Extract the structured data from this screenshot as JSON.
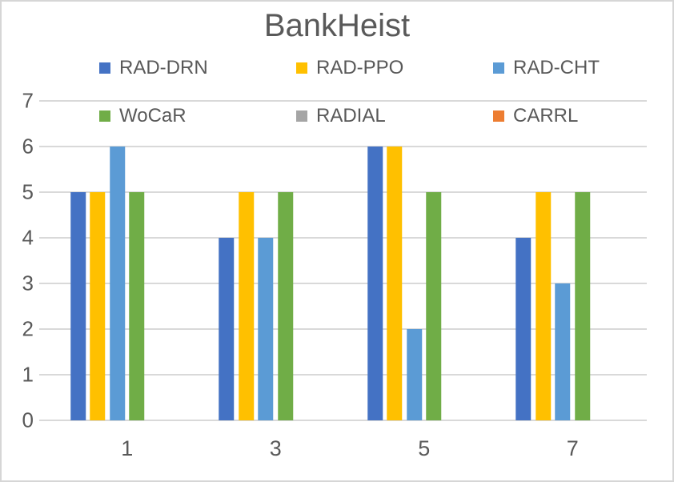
{
  "chart_data": {
    "type": "bar",
    "title": "BankHeist",
    "categories": [
      "1",
      "3",
      "5",
      "7"
    ],
    "series": [
      {
        "name": "RAD-DRN",
        "color": "#4472C4",
        "values": [
          5,
          4,
          6,
          4
        ]
      },
      {
        "name": "RAD-PPO",
        "color": "#FFC000",
        "values": [
          5,
          5,
          6,
          5
        ]
      },
      {
        "name": "RAD-CHT",
        "color": "#5B9BD5",
        "values": [
          6,
          4,
          2,
          3
        ]
      },
      {
        "name": "WoCaR",
        "color": "#70AD47",
        "values": [
          5,
          5,
          5,
          5
        ]
      },
      {
        "name": "RADIAL",
        "color": "#A5A5A5",
        "values": [
          0,
          0,
          0,
          0
        ]
      },
      {
        "name": "CARRL",
        "color": "#ED7D31",
        "values": [
          0,
          0,
          0,
          0
        ]
      }
    ],
    "legend_rows": [
      [
        "RAD-DRN",
        "RAD-PPO",
        "RAD-CHT"
      ],
      [
        "WoCaR",
        "RADIAL",
        "CARRL"
      ]
    ],
    "legend_position": "top",
    "xlabel": "",
    "ylabel": "",
    "ylim": [
      0,
      7
    ],
    "yticks": [
      0,
      1,
      2,
      3,
      4,
      5,
      6,
      7
    ],
    "grid": true,
    "colors": {
      "text": "#595959",
      "gridline": "#d9d9d9",
      "frame_border": "#d6d6d6",
      "background": "#ffffff"
    },
    "category_center_percents": [
      12.5,
      37.5,
      62.5,
      87.5
    ]
  }
}
